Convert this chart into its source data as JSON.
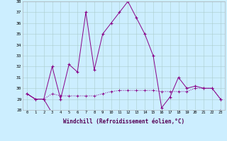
{
  "xlabel": "Windchill (Refroidissement éolien,°C)",
  "background_color": "#cceeff",
  "grid_color": "#aacccc",
  "line_color": "#880088",
  "hours": [
    0,
    1,
    2,
    3,
    4,
    5,
    6,
    7,
    8,
    9,
    10,
    11,
    12,
    13,
    14,
    15,
    16,
    17,
    18,
    19,
    20,
    21,
    22,
    23
  ],
  "curve1": [
    29.5,
    29.0,
    29.0,
    32.0,
    29.0,
    32.2,
    31.5,
    37.0,
    31.7,
    35.0,
    36.0,
    37.0,
    38.0,
    36.5,
    35.0,
    33.0,
    28.2,
    29.2,
    31.0,
    30.0,
    30.2,
    30.0,
    30.0,
    29.0
  ],
  "curve2": [
    29.5,
    29.0,
    29.0,
    29.5,
    29.3,
    29.3,
    29.3,
    29.3,
    29.3,
    29.5,
    29.7,
    29.8,
    29.8,
    29.8,
    29.8,
    29.8,
    29.7,
    29.7,
    29.7,
    29.7,
    30.0,
    30.0,
    30.0,
    29.0
  ],
  "curve3": [
    29.5,
    29.0,
    29.0,
    27.7,
    27.7,
    27.7,
    27.7,
    27.7,
    27.7,
    27.7,
    27.7,
    27.7,
    27.7,
    27.7,
    27.7,
    27.7,
    27.7,
    27.7,
    27.7,
    27.7,
    27.7,
    27.7,
    27.7,
    28.0
  ],
  "ylim": [
    28,
    38
  ],
  "yticks": [
    28,
    29,
    30,
    31,
    32,
    33,
    34,
    35,
    36,
    37,
    38
  ],
  "figsize": [
    3.2,
    2.0
  ],
  "dpi": 100
}
